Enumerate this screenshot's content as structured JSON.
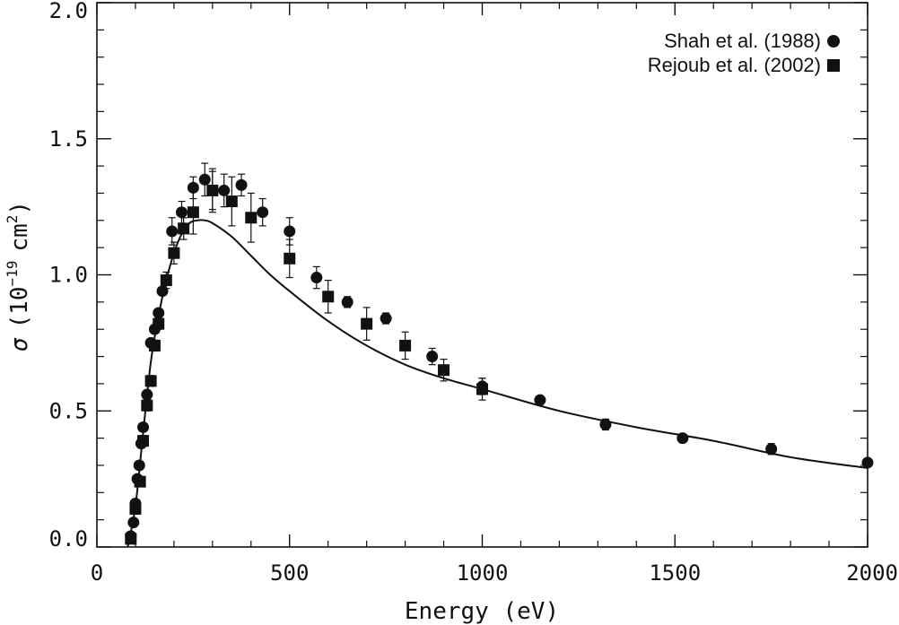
{
  "chart_data": {
    "type": "scatter",
    "title": "",
    "xlabel": "Energy (eV)",
    "ylabel": {
      "symbol": "σ",
      "open": "(",
      "base": "10",
      "exponent": "−19",
      "unit": "cm",
      "unit_exponent": "2",
      "close": ")"
    },
    "xlim": [
      0,
      2000
    ],
    "ylim": [
      0.0,
      2.0
    ],
    "x_ticks": [
      0,
      500,
      1000,
      1500,
      2000
    ],
    "x_tick_labels": [
      "0",
      "500",
      "1000",
      "1500",
      "2000"
    ],
    "y_ticks": [
      0.0,
      0.5,
      1.0,
      1.5,
      2.0
    ],
    "y_tick_labels": [
      "0.0",
      "0.5",
      "1.0",
      "1.5",
      "2.0"
    ],
    "x_minor_step": 100,
    "y_minor_step": 0.1,
    "legend_position": "top-right",
    "series": [
      {
        "name": "Shah et al. (1988)",
        "marker": "circle",
        "points": [
          {
            "x": 88,
            "y": 0.04,
            "err": 0.01
          },
          {
            "x": 95,
            "y": 0.09,
            "err": 0.01
          },
          {
            "x": 100,
            "y": 0.16,
            "err": 0.01
          },
          {
            "x": 105,
            "y": 0.25,
            "err": 0.01
          },
          {
            "x": 110,
            "y": 0.3,
            "err": 0.01
          },
          {
            "x": 115,
            "y": 0.38,
            "err": 0.01
          },
          {
            "x": 120,
            "y": 0.44,
            "err": 0.01
          },
          {
            "x": 130,
            "y": 0.56,
            "err": 0.01
          },
          {
            "x": 140,
            "y": 0.75,
            "err": 0.01
          },
          {
            "x": 150,
            "y": 0.8,
            "err": 0.01
          },
          {
            "x": 160,
            "y": 0.86,
            "err": 0.01
          },
          {
            "x": 170,
            "y": 0.94,
            "err": 0.01
          },
          {
            "x": 195,
            "y": 1.16,
            "err": 0.05
          },
          {
            "x": 220,
            "y": 1.23,
            "err": 0.04
          },
          {
            "x": 250,
            "y": 1.32,
            "err": 0.04
          },
          {
            "x": 280,
            "y": 1.35,
            "err": 0.06
          },
          {
            "x": 300,
            "y": 1.31,
            "err": 0.07
          },
          {
            "x": 330,
            "y": 1.31,
            "err": 0.06
          },
          {
            "x": 375,
            "y": 1.33,
            "err": 0.04
          },
          {
            "x": 430,
            "y": 1.23,
            "err": 0.05
          },
          {
            "x": 500,
            "y": 1.16,
            "err": 0.05
          },
          {
            "x": 570,
            "y": 0.99,
            "err": 0.04
          },
          {
            "x": 650,
            "y": 0.9,
            "err": 0.02
          },
          {
            "x": 750,
            "y": 0.84,
            "err": 0.02
          },
          {
            "x": 870,
            "y": 0.7,
            "err": 0.03
          },
          {
            "x": 1000,
            "y": 0.59,
            "err": 0.03
          },
          {
            "x": 1150,
            "y": 0.54,
            "err": 0.01
          },
          {
            "x": 1320,
            "y": 0.45,
            "err": 0.02
          },
          {
            "x": 1520,
            "y": 0.4,
            "err": 0.01
          },
          {
            "x": 1750,
            "y": 0.36,
            "err": 0.02
          },
          {
            "x": 2000,
            "y": 0.31,
            "err": 0.01
          }
        ]
      },
      {
        "name": "Rejoub et al. (2002)",
        "marker": "square",
        "points": [
          {
            "x": 88,
            "y": 0.03,
            "err": 0.01
          },
          {
            "x": 100,
            "y": 0.14,
            "err": 0.01
          },
          {
            "x": 112,
            "y": 0.24,
            "err": 0.01
          },
          {
            "x": 120,
            "y": 0.39,
            "err": 0.02
          },
          {
            "x": 130,
            "y": 0.52,
            "err": 0.02
          },
          {
            "x": 140,
            "y": 0.61,
            "err": 0.02
          },
          {
            "x": 150,
            "y": 0.74,
            "err": 0.02
          },
          {
            "x": 160,
            "y": 0.82,
            "err": 0.02
          },
          {
            "x": 180,
            "y": 0.98,
            "err": 0.03
          },
          {
            "x": 200,
            "y": 1.08,
            "err": 0.04
          },
          {
            "x": 225,
            "y": 1.17,
            "err": 0.04
          },
          {
            "x": 250,
            "y": 1.23,
            "err": 0.08
          },
          {
            "x": 300,
            "y": 1.31,
            "err": 0.08
          },
          {
            "x": 350,
            "y": 1.27,
            "err": 0.09
          },
          {
            "x": 400,
            "y": 1.21,
            "err": 0.09
          },
          {
            "x": 500,
            "y": 1.06,
            "err": 0.07
          },
          {
            "x": 600,
            "y": 0.92,
            "err": 0.06
          },
          {
            "x": 700,
            "y": 0.82,
            "err": 0.06
          },
          {
            "x": 800,
            "y": 0.74,
            "err": 0.05
          },
          {
            "x": 900,
            "y": 0.65,
            "err": 0.04
          },
          {
            "x": 1000,
            "y": 0.58,
            "err": 0.04
          }
        ]
      },
      {
        "name": "theory curve",
        "type": "line",
        "points": [
          {
            "x": 80,
            "y": 0.0
          },
          {
            "x": 100,
            "y": 0.15
          },
          {
            "x": 120,
            "y": 0.42
          },
          {
            "x": 140,
            "y": 0.68
          },
          {
            "x": 160,
            "y": 0.85
          },
          {
            "x": 180,
            "y": 0.98
          },
          {
            "x": 200,
            "y": 1.08
          },
          {
            "x": 220,
            "y": 1.15
          },
          {
            "x": 240,
            "y": 1.19
          },
          {
            "x": 260,
            "y": 1.2
          },
          {
            "x": 280,
            "y": 1.2
          },
          {
            "x": 300,
            "y": 1.19
          },
          {
            "x": 350,
            "y": 1.14
          },
          {
            "x": 400,
            "y": 1.07
          },
          {
            "x": 450,
            "y": 1.0
          },
          {
            "x": 500,
            "y": 0.94
          },
          {
            "x": 600,
            "y": 0.83
          },
          {
            "x": 700,
            "y": 0.74
          },
          {
            "x": 800,
            "y": 0.67
          },
          {
            "x": 900,
            "y": 0.62
          },
          {
            "x": 1000,
            "y": 0.58
          },
          {
            "x": 1200,
            "y": 0.5
          },
          {
            "x": 1400,
            "y": 0.44
          },
          {
            "x": 1600,
            "y": 0.39
          },
          {
            "x": 1800,
            "y": 0.33
          },
          {
            "x": 2000,
            "y": 0.29
          }
        ]
      }
    ]
  }
}
